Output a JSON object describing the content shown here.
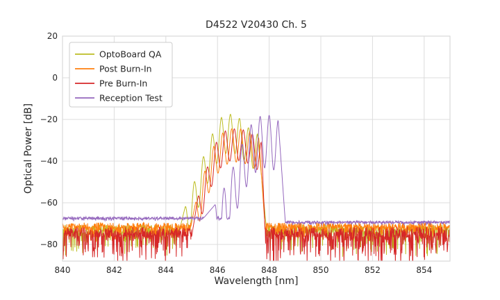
{
  "chart_data": {
    "type": "line",
    "title": "D4522 V20430 Ch. 5",
    "xlabel": "Wavelength [nm]",
    "ylabel": "Optical Power [dB]",
    "xlim": [
      840,
      855
    ],
    "ylim": [
      -88,
      20
    ],
    "xticks": [
      840,
      842,
      844,
      846,
      848,
      850,
      852,
      854
    ],
    "xtick_labels": [
      "840",
      "842",
      "844",
      "846",
      "848",
      "850",
      "852",
      "854"
    ],
    "yticks": [
      20,
      0,
      -20,
      -40,
      -60,
      -80
    ],
    "ytick_labels": [
      "20",
      "0",
      "−20",
      "−40",
      "−60",
      "−80"
    ],
    "grid": true,
    "grid_color": "#dcdcdc",
    "text_color": "#262626",
    "legend_position": "upper left",
    "series": [
      {
        "name": "OptoBoard QA",
        "color": "#bcbd22",
        "noise": {
          "base": -72.5,
          "spike": 12,
          "jitter": 2.0
        },
        "mode_spacing": 0.35,
        "ripple_depth": 18,
        "comb_range": [
          844.75,
          847.55
        ],
        "peaks": [
          [
            844.35,
            -82
          ],
          [
            844.75,
            -62
          ],
          [
            845.1,
            -50
          ],
          [
            845.45,
            -38
          ],
          [
            845.8,
            -27
          ],
          [
            846.15,
            -19
          ],
          [
            846.5,
            -17.5
          ],
          [
            846.85,
            -19.5
          ],
          [
            847.2,
            -24
          ],
          [
            847.55,
            -27
          ],
          [
            847.95,
            -80
          ]
        ]
      },
      {
        "name": "Post Burn-In",
        "color": "#ff7f0e",
        "noise": {
          "base": -71.0,
          "spike": 7,
          "jitter": 1.5
        },
        "mode_spacing": 0.35,
        "ripple_depth": 16,
        "comb_range": [
          845.15,
          847.6
        ],
        "peaks": [
          [
            844.8,
            -82
          ],
          [
            845.15,
            -60
          ],
          [
            845.5,
            -45
          ],
          [
            845.85,
            -33
          ],
          [
            846.2,
            -26.5
          ],
          [
            846.55,
            -24.5
          ],
          [
            846.9,
            -24.5
          ],
          [
            847.25,
            -26
          ],
          [
            847.6,
            -29
          ],
          [
            847.9,
            -82
          ]
        ]
      },
      {
        "name": "Pre Burn-In",
        "color": "#d62728",
        "noise": {
          "base": -74.0,
          "spike": 15,
          "jitter": 2.5
        },
        "mode_spacing": 0.35,
        "ripple_depth": 15,
        "comb_range": [
          845.25,
          847.7
        ],
        "peaks": [
          [
            844.9,
            -84
          ],
          [
            845.25,
            -57
          ],
          [
            845.6,
            -43
          ],
          [
            845.95,
            -31
          ],
          [
            846.3,
            -25.5
          ],
          [
            846.65,
            -24.5
          ],
          [
            847.0,
            -25
          ],
          [
            847.35,
            -27
          ],
          [
            847.7,
            -31
          ],
          [
            847.88,
            -86
          ]
        ]
      },
      {
        "name": "Reception Test",
        "color": "#9467bd",
        "noise": {
          "base_left": -67.3,
          "base_right": -69.2,
          "spike": 1.2,
          "jitter": 0.6
        },
        "mode_spacing": 0.35,
        "ripple_depth": 25,
        "comb_range": [
          845.9,
          848.35
        ],
        "peaks": [
          [
            845.45,
            -67.5
          ],
          [
            845.9,
            -61
          ],
          [
            846.25,
            -53
          ],
          [
            846.6,
            -43
          ],
          [
            846.95,
            -32
          ],
          [
            847.3,
            -22.5
          ],
          [
            847.65,
            -18.5
          ],
          [
            848.0,
            -18
          ],
          [
            848.35,
            -20.5
          ],
          [
            848.62,
            -68.5
          ]
        ]
      }
    ]
  }
}
